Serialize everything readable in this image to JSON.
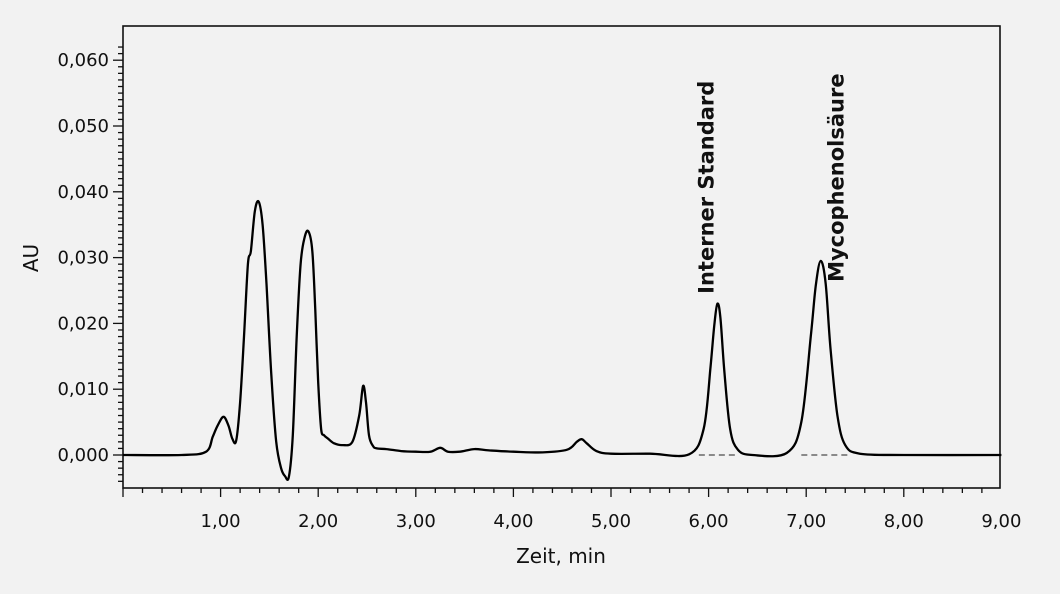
{
  "chart_data": {
    "type": "line",
    "title": "",
    "xlabel": "Zeit, min",
    "ylabel": "AU",
    "xlim": [
      0,
      9
    ],
    "ylim": [
      -0.005,
      0.065
    ],
    "grid": false,
    "xticks": [
      1,
      2,
      3,
      4,
      5,
      6,
      7,
      8,
      9
    ],
    "xtick_labels": [
      "1,00",
      "2,00",
      "3,00",
      "4,00",
      "5,00",
      "6,00",
      "7,00",
      "8,00",
      "9,00"
    ],
    "yticks": [
      0,
      0.01,
      0.02,
      0.03,
      0.04,
      0.05,
      0.06
    ],
    "ytick_labels": [
      "0,000",
      "0,010",
      "0,020",
      "0,030",
      "0,040",
      "0,050",
      "0,060"
    ],
    "series": [
      {
        "values_x": [
          0,
          0.6,
          0.85,
          0.92,
          0.97,
          1.03,
          1.08,
          1.12,
          1.16,
          1.2,
          1.24,
          1.28,
          1.31,
          1.35,
          1.39,
          1.43,
          1.47,
          1.52,
          1.57,
          1.62,
          1.66,
          1.7,
          1.74,
          1.78,
          1.82,
          1.86,
          1.9,
          1.94,
          1.97,
          2.0,
          2.03,
          2.06,
          2.1,
          2.16,
          2.25,
          2.35,
          2.42,
          2.46,
          2.49,
          2.52,
          2.56,
          2.6,
          2.7,
          2.85,
          3.0,
          3.15,
          3.25,
          3.33,
          3.45,
          3.6,
          3.75,
          4.0,
          4.3,
          4.55,
          4.65,
          4.7,
          4.75,
          4.85,
          5.0,
          5.4,
          5.8,
          5.95,
          6.02,
          6.06,
          6.09,
          6.12,
          6.16,
          6.22,
          6.3,
          6.45,
          6.8,
          6.95,
          7.05,
          7.1,
          7.15,
          7.2,
          7.25,
          7.32,
          7.4,
          7.55,
          8.0,
          9.0
        ],
        "values_y": [
          0,
          0,
          0.0005,
          0.0028,
          0.0045,
          0.0058,
          0.0045,
          0.0025,
          0.0022,
          0.008,
          0.018,
          0.029,
          0.031,
          0.037,
          0.0385,
          0.035,
          0.026,
          0.012,
          0.002,
          -0.002,
          -0.0032,
          -0.0033,
          0.003,
          0.018,
          0.029,
          0.033,
          0.034,
          0.031,
          0.022,
          0.011,
          0.004,
          0.003,
          0.0025,
          0.0018,
          0.0015,
          0.002,
          0.006,
          0.0105,
          0.008,
          0.003,
          0.0014,
          0.001,
          0.0009,
          0.0006,
          0.0005,
          0.0005,
          0.0011,
          0.0005,
          0.0005,
          0.0009,
          0.0007,
          0.0005,
          0.0004,
          0.0008,
          0.002,
          0.0024,
          0.0018,
          0.0006,
          0.0002,
          0.0002,
          0.0001,
          0.004,
          0.0135,
          0.02,
          0.023,
          0.021,
          0.013,
          0.004,
          0.0008,
          0,
          0.0003,
          0.005,
          0.0185,
          0.026,
          0.0295,
          0.026,
          0.016,
          0.006,
          0.0015,
          0.0002,
          0,
          0
        ]
      }
    ],
    "baselines": [
      {
        "x": [
          5.9,
          6.3
        ]
      },
      {
        "x": [
          6.95,
          7.45
        ]
      }
    ],
    "annotations": [
      {
        "text": "Interner Standard",
        "x": 6.05,
        "y": 0.0245
      },
      {
        "text": "Mycophenolsäure",
        "x": 7.38,
        "y": 0.0263
      }
    ]
  }
}
